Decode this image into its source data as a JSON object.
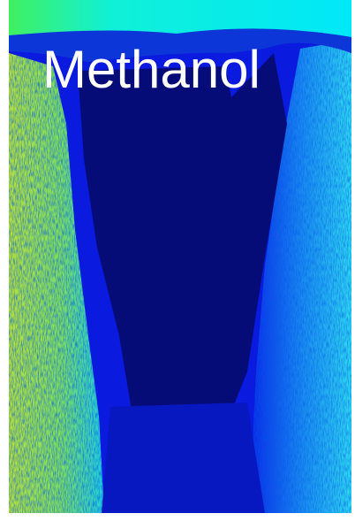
{
  "label": "Methanol"
}
